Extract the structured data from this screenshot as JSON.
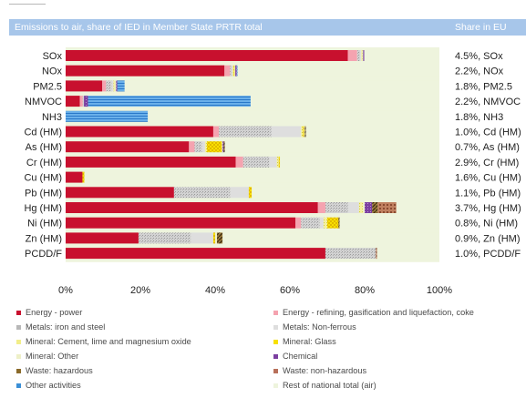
{
  "header": {
    "title": "Emissions to air, share of IED in Member State PRTR total",
    "share_label": "Share in EU"
  },
  "colors": {
    "energy_power": "#c8102e",
    "energy_refining": "#f5a3b0",
    "metals_iron_steel": "#c9c9c9",
    "metals_nonferrous": "#dedede",
    "mineral_cement": "#f2ee8a",
    "mineral_glass": "#f7e000",
    "mineral_other": "#eef0c8",
    "chemical": "#7b3fa0",
    "waste_hazardous": "#8a6a2a",
    "waste_nonhazardous": "#b8705a",
    "other_activities": "#3a8fd6",
    "rest_national": "#eef4dd"
  },
  "chart_data": {
    "type": "bar",
    "orientation": "horizontal",
    "stacked": true,
    "title": "Emissions to air, share of IED in Member State PRTR total",
    "xlim": [
      0,
      100
    ],
    "x_ticks": [
      "0%",
      "20%",
      "40%",
      "60%",
      "80%",
      "100%"
    ],
    "grid": false,
    "legend_position": "bottom",
    "categories": [
      "SOx",
      "NOx",
      "PM2.5",
      "NMVOC",
      "NH3",
      "Cd (HM)",
      "As (HM)",
      "Cr (HM)",
      "Cu (HM)",
      "Pb (HM)",
      "Hg (HM)",
      "Ni (HM)",
      "Zn (HM)",
      "PCDD/F"
    ],
    "share_labels": [
      "4.5%, SOx",
      "2.2%, NOx",
      "1.8%, PM2.5",
      "2.2%, NMVOC",
      "1.8%, NH3",
      "1.0%, Cd (HM)",
      "0.7%, As (HM)",
      "2.9%, Cr (HM)",
      "1.6%, Cu (HM)",
      "1.1%, Pb (HM)",
      "3.7%, Hg (HM)",
      "0.8%, Ni (HM)",
      "0.9%, Zn (HM)",
      "1.0%, PCDD/F"
    ],
    "series": [
      {
        "name": "Energy - power",
        "key": "energy_power",
        "values": [
          75.5,
          42.5,
          9.8,
          3.8,
          0,
          39.5,
          33,
          45.5,
          4.5,
          29,
          67.5,
          61.5,
          19.5,
          69.5
        ]
      },
      {
        "name": "Energy - refining, gasification and liquefaction, coke",
        "key": "energy_refining",
        "values": [
          2.5,
          1.5,
          1,
          0.8,
          0,
          1.5,
          1.5,
          2,
          0,
          0,
          2,
          1.5,
          0,
          0
        ]
      },
      {
        "name": "Metals: iron and steel",
        "key": "metals_iron_steel",
        "values": [
          0.8,
          0.5,
          1.5,
          0.3,
          0,
          14,
          2,
          7,
          0,
          15,
          6,
          5,
          14,
          13.5
        ]
      },
      {
        "name": "Metals: Non-ferrous",
        "key": "metals_nonferrous",
        "values": [
          0.3,
          0.2,
          0.5,
          0,
          0,
          8,
          0.8,
          2,
          0,
          5,
          3,
          1,
          6,
          0
        ]
      },
      {
        "name": "Mineral: Cement, lime and magnesium oxide",
        "key": "mineral_cement",
        "values": [
          0.3,
          0.3,
          0.5,
          0,
          0,
          0.5,
          0.5,
          0.5,
          0,
          0,
          1,
          1,
          0,
          0
        ]
      },
      {
        "name": "Mineral: Glass",
        "key": "mineral_glass",
        "values": [
          0,
          0.2,
          0,
          0,
          0,
          0.3,
          4,
          0.3,
          0.5,
          0.8,
          0,
          3,
          0.5,
          0
        ]
      },
      {
        "name": "Mineral: Other",
        "key": "mineral_other",
        "values": [
          0.2,
          0.2,
          0.2,
          0,
          0,
          0.2,
          0.2,
          0.2,
          0,
          0,
          0.5,
          0,
          0.5,
          0
        ]
      },
      {
        "name": "Chemical",
        "key": "chemical",
        "values": [
          0.3,
          0.4,
          0.3,
          1.1,
          0,
          0,
          0.3,
          0,
          0,
          0,
          2,
          0,
          0,
          0
        ]
      },
      {
        "name": "Waste: hazardous",
        "key": "waste_hazardous",
        "values": [
          0,
          0,
          0,
          0,
          0,
          0.3,
          0.3,
          0,
          0,
          0,
          1.5,
          0.3,
          1.5,
          0
        ]
      },
      {
        "name": "Waste: non-hazardous",
        "key": "waste_nonhazardous",
        "values": [
          0,
          0,
          0,
          0,
          0,
          0,
          0,
          0,
          0,
          0,
          5,
          0,
          0,
          0.3
        ]
      },
      {
        "name": "Other activities",
        "key": "other_activities",
        "values": [
          0,
          0.2,
          2,
          43.5,
          22,
          0,
          0,
          0,
          0,
          0,
          0,
          0,
          0,
          0
        ]
      },
      {
        "name": "Rest of national total  (air)",
        "key": "rest_national",
        "values": [
          20.1,
          54,
          84.2,
          50.5,
          78,
          35.7,
          57.4,
          42.5,
          95,
          50.2,
          11.5,
          26.7,
          58,
          16.7
        ]
      }
    ]
  },
  "legend": [
    {
      "key": "energy_power",
      "label": "Energy - power"
    },
    {
      "key": "energy_refining",
      "label": "Energy - refining, gasification and liquefaction, coke"
    },
    {
      "key": "metals_iron_steel",
      "label": "Metals: iron and steel"
    },
    {
      "key": "metals_nonferrous",
      "label": "Metals: Non-ferrous"
    },
    {
      "key": "mineral_cement",
      "label": "Mineral: Cement, lime and magnesium oxide"
    },
    {
      "key": "mineral_glass",
      "label": "Mineral: Glass"
    },
    {
      "key": "mineral_other",
      "label": "Mineral: Other"
    },
    {
      "key": "chemical",
      "label": "Chemical"
    },
    {
      "key": "waste_hazardous",
      "label": "Waste: hazardous"
    },
    {
      "key": "waste_nonhazardous",
      "label": "Waste: non-hazardous"
    },
    {
      "key": "other_activities",
      "label": "Other activities"
    },
    {
      "key": "rest_national",
      "label": "Rest of national total  (air)"
    }
  ]
}
